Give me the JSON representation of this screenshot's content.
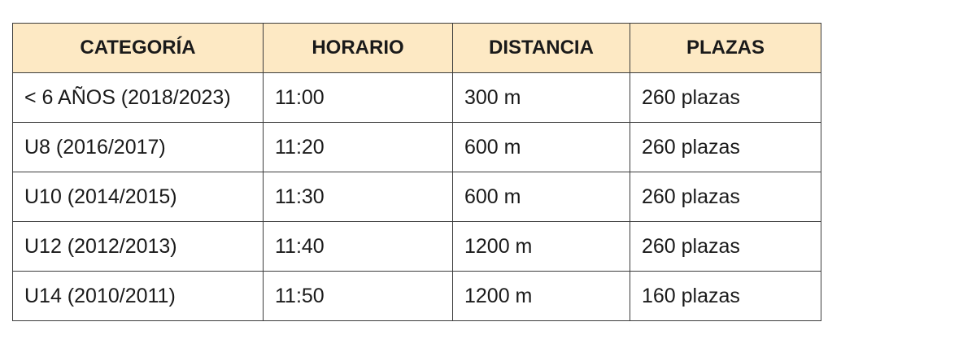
{
  "table": {
    "header_color": "#fde9c4",
    "headers": [
      "CATEGORÍA",
      "HORARIO",
      "DISTANCIA",
      "PLAZAS"
    ],
    "rows": [
      [
        "< 6 AÑOS (2018/2023)",
        "11:00",
        "300 m",
        "260 plazas"
      ],
      [
        "U8 (2016/2017)",
        "11:20",
        "600 m",
        "260 plazas"
      ],
      [
        "U10 (2014/2015)",
        "11:30",
        "600 m",
        "260 plazas"
      ],
      [
        "U12 (2012/2013)",
        "11:40",
        "1200 m",
        "260 plazas"
      ],
      [
        "U14 (2010/2011)",
        "11:50",
        "1200 m",
        "160 plazas"
      ]
    ]
  }
}
